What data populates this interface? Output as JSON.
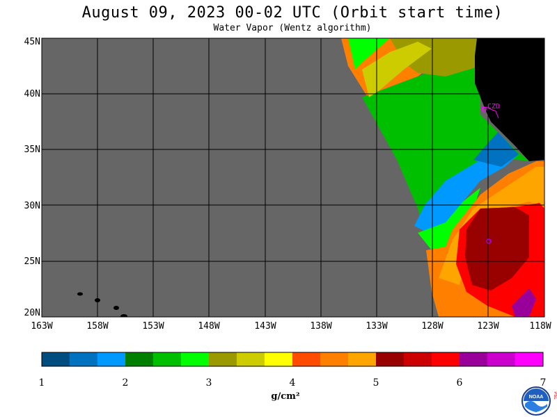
{
  "title": "August 09, 2023  00-02 UTC  (Orbit start time)",
  "subtitle": "Water Vapor (Wentz algorithm)",
  "lat_labels": [
    "45N",
    "40N",
    "35N",
    "30N",
    "25N",
    "20N"
  ],
  "lon_labels": [
    "163W",
    "158W",
    "153W",
    "148W",
    "143W",
    "138W",
    "133W",
    "128W",
    "123W",
    "118W"
  ],
  "station_label": "CZD",
  "colorbar": {
    "labels": [
      "1",
      "2",
      "3",
      "4",
      "5",
      "6",
      "7"
    ],
    "colors": [
      "#004c7f",
      "#0072bf",
      "#0099ff",
      "#007f00",
      "#00bf00",
      "#00ff00",
      "#9a9900",
      "#cccc00",
      "#ffff00",
      "#ff4c00",
      "#ff7f00",
      "#ffa500",
      "#990000",
      "#cc0000",
      "#ff0000",
      "#990099",
      "#cc00cc",
      "#ff00ff"
    ],
    "units": "g/cm²"
  },
  "logo_text": "NOAA",
  "logo_side_text": "PSL"
}
